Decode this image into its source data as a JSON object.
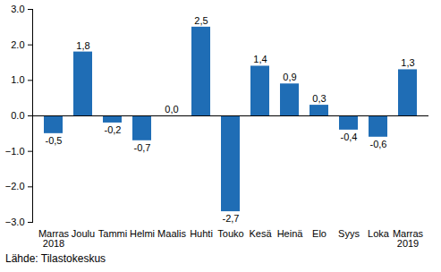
{
  "chart_data": {
    "type": "bar",
    "categories": [
      "Marras\n2018",
      "Joulu",
      "Tammi",
      "Helmi",
      "Maalis",
      "Huhti",
      "Touko",
      "Kesä",
      "Heinä",
      "Elo",
      "Syys",
      "Loka",
      "Marras\n2019"
    ],
    "values": [
      -0.5,
      1.8,
      -0.2,
      -0.7,
      0.0,
      2.5,
      -2.7,
      1.4,
      0.9,
      0.3,
      -0.4,
      -0.6,
      1.3
    ],
    "value_labels": [
      "-0,5",
      "1,8",
      "-0,2",
      "-0,7",
      "0,0",
      "2,5",
      "-2,7",
      "1,4",
      "0,9",
      "0,3",
      "-0,4",
      "-0,6",
      "1,3"
    ],
    "data_labels": true,
    "color": "#1f6db5",
    "ylim": [
      -3,
      3
    ],
    "yticks": [
      -3,
      -2,
      -1,
      0,
      1,
      2,
      3
    ],
    "grid": false,
    "caption": "Lähde: Tilastokeskus"
  }
}
